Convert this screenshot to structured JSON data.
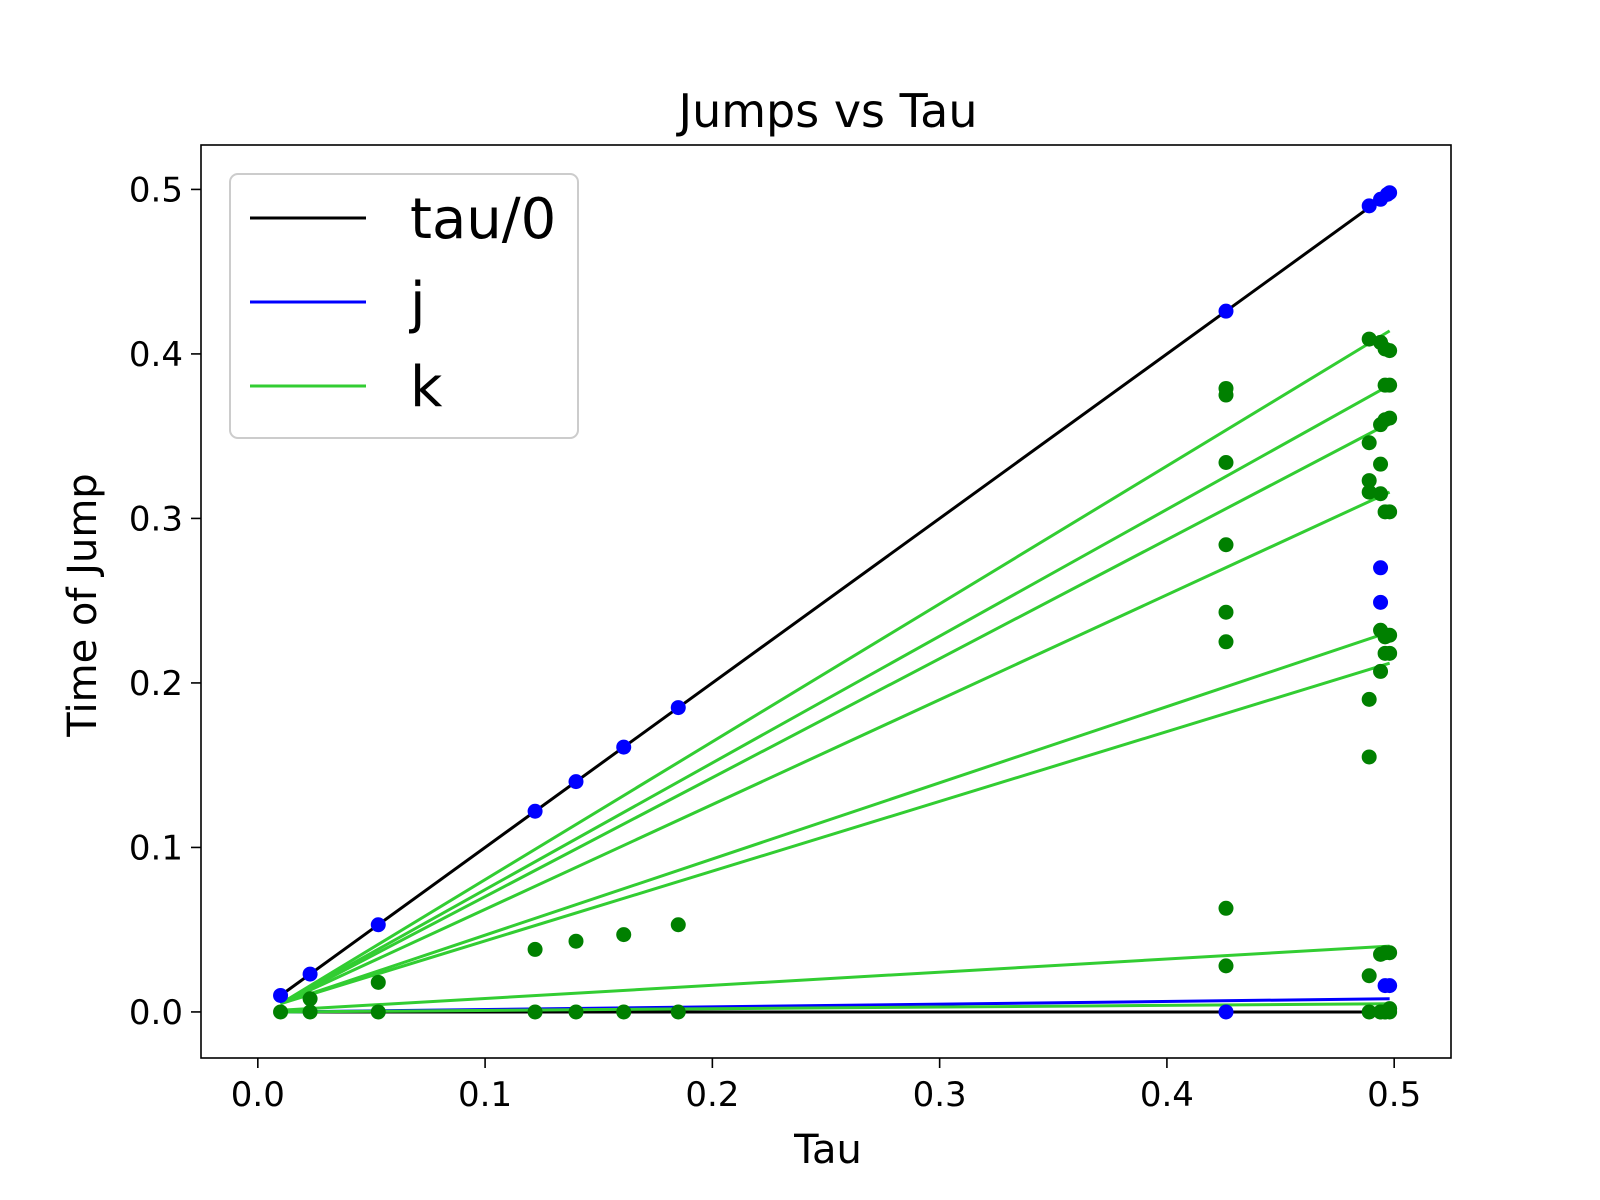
{
  "chart_data": {
    "type": "scatter",
    "title": "Jumps vs Tau",
    "xlabel": "Tau",
    "ylabel": "Time of Jump",
    "xlim": [
      -0.025,
      0.525
    ],
    "ylim": [
      -0.028,
      0.527
    ],
    "xticks": [
      0.0,
      0.1,
      0.2,
      0.3,
      0.4,
      0.5
    ],
    "yticks": [
      0.0,
      0.1,
      0.2,
      0.3,
      0.4,
      0.5
    ],
    "xtick_labels": [
      "0.0",
      "0.1",
      "0.2",
      "0.3",
      "0.4",
      "0.5"
    ],
    "ytick_labels": [
      "0.0",
      "0.1",
      "0.2",
      "0.3",
      "0.4",
      "0.5"
    ],
    "grid": false,
    "legend_position": "top-left",
    "legend": [
      {
        "label": "tau/0",
        "color": "#000000"
      },
      {
        "label": "j",
        "color": "#0000ff"
      },
      {
        "label": "k",
        "color": "#32cd32"
      }
    ],
    "lines": [
      {
        "series": "tau/0",
        "color": "#000000",
        "x": [
          0.01,
          0.498
        ],
        "y": [
          0.01,
          0.498
        ]
      },
      {
        "series": "tau/0",
        "color": "#000000",
        "x": [
          0.01,
          0.498
        ],
        "y": [
          0.0,
          0.0
        ]
      },
      {
        "series": "j",
        "color": "#0000ff",
        "x": [
          0.01,
          0.498
        ],
        "y": [
          0.0,
          0.008
        ]
      },
      {
        "series": "k",
        "color": "#32cd32",
        "x": [
          0.01,
          0.498
        ],
        "y": [
          0.005,
          0.414
        ]
      },
      {
        "series": "k",
        "color": "#32cd32",
        "x": [
          0.01,
          0.498
        ],
        "y": [
          0.005,
          0.381
        ]
      },
      {
        "series": "k",
        "color": "#32cd32",
        "x": [
          0.01,
          0.498
        ],
        "y": [
          0.005,
          0.358
        ]
      },
      {
        "series": "k",
        "color": "#32cd32",
        "x": [
          0.01,
          0.498
        ],
        "y": [
          0.005,
          0.316
        ]
      },
      {
        "series": "k",
        "color": "#32cd32",
        "x": [
          0.01,
          0.498
        ],
        "y": [
          0.005,
          0.231
        ]
      },
      {
        "series": "k",
        "color": "#32cd32",
        "x": [
          0.01,
          0.498
        ],
        "y": [
          0.005,
          0.212
        ]
      },
      {
        "series": "k",
        "color": "#32cd32",
        "x": [
          0.01,
          0.498
        ],
        "y": [
          0.001,
          0.04
        ]
      },
      {
        "series": "k",
        "color": "#32cd32",
        "x": [
          0.01,
          0.498
        ],
        "y": [
          0.0,
          0.005
        ]
      }
    ],
    "points_blue": {
      "color": "#0000ff",
      "x": [
        0.01,
        0.023,
        0.053,
        0.122,
        0.14,
        0.161,
        0.185,
        0.426,
        0.489,
        0.494,
        0.497,
        0.498,
        0.494,
        0.494,
        0.496,
        0.498,
        0.426
      ],
      "y": [
        0.01,
        0.023,
        0.053,
        0.122,
        0.14,
        0.161,
        0.185,
        0.426,
        0.49,
        0.494,
        0.497,
        0.498,
        0.27,
        0.249,
        0.016,
        0.016,
        0.0
      ]
    },
    "points_green": {
      "color": "#008000",
      "x": [
        0.01,
        0.023,
        0.023,
        0.053,
        0.053,
        0.122,
        0.122,
        0.14,
        0.14,
        0.161,
        0.161,
        0.185,
        0.185,
        0.426,
        0.426,
        0.426,
        0.426,
        0.426,
        0.426,
        0.426,
        0.426,
        0.489,
        0.489,
        0.489,
        0.489,
        0.489,
        0.489,
        0.489,
        0.489,
        0.494,
        0.494,
        0.494,
        0.494,
        0.494,
        0.494,
        0.494,
        0.494,
        0.496,
        0.496,
        0.496,
        0.496,
        0.496,
        0.496,
        0.496,
        0.496,
        0.498,
        0.498,
        0.498,
        0.498,
        0.498,
        0.498,
        0.498,
        0.498,
        0.498,
        0.494,
        0.496
      ],
      "y": [
        0.0,
        0.008,
        0.0,
        0.018,
        0.0,
        0.038,
        0.0,
        0.043,
        0.0,
        0.047,
        0.0,
        0.053,
        0.0,
        0.379,
        0.375,
        0.334,
        0.284,
        0.243,
        0.225,
        0.063,
        0.028,
        0.409,
        0.346,
        0.323,
        0.316,
        0.19,
        0.155,
        0.022,
        0.0,
        0.407,
        0.357,
        0.333,
        0.315,
        0.232,
        0.207,
        0.035,
        0.0,
        0.403,
        0.381,
        0.36,
        0.304,
        0.228,
        0.218,
        0.036,
        0.0,
        0.402,
        0.381,
        0.361,
        0.304,
        0.229,
        0.218,
        0.036,
        0.002,
        0.0,
        0.0,
        0.0
      ]
    }
  }
}
